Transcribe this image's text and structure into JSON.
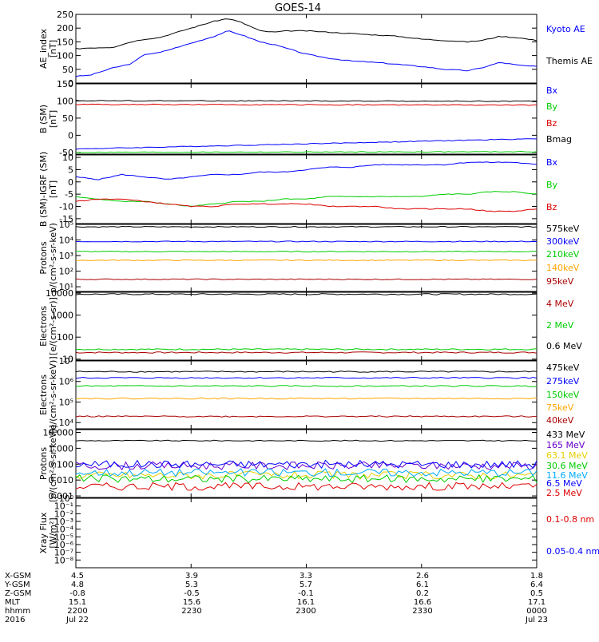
{
  "title": "GOES-14",
  "colors": {
    "black": "#000000",
    "blue": "#0000ff",
    "green": "#00cc00",
    "red": "#dd0000",
    "darkred": "#aa0000",
    "orange": "#ffa500",
    "yellow": "#e6d000",
    "cyan": "#00aaff",
    "purple": "#6600cc",
    "gray": "#444444"
  },
  "chart_data": [
    {
      "type": "line",
      "id": "ae",
      "ylabel": [
        "AE_index",
        "[nT]"
      ],
      "ylim": [
        0,
        250
      ],
      "scale": "linear",
      "yticks": [
        0,
        50,
        100,
        150,
        200,
        250
      ],
      "ytick_labels": [
        "0",
        "50",
        "100",
        "150",
        "200",
        "250"
      ],
      "series": [
        {
          "name": "Kyoto AE",
          "color": "#0000ff",
          "x": [
            0,
            0.03,
            0.08,
            0.12,
            0.15,
            0.18,
            0.22,
            0.26,
            0.3,
            0.33,
            0.36,
            0.4,
            0.43,
            0.46,
            0.5,
            0.55,
            0.6,
            0.65,
            0.7,
            0.75,
            0.8,
            0.85,
            0.88,
            0.92,
            0.96,
            1.0
          ],
          "y": [
            25,
            28,
            55,
            70,
            105,
            110,
            130,
            150,
            170,
            190,
            175,
            150,
            140,
            125,
            105,
            90,
            80,
            75,
            68,
            60,
            50,
            45,
            55,
            75,
            65,
            60
          ]
        },
        {
          "name": "Themis AE",
          "color": "#000000",
          "x": [
            0,
            0.03,
            0.08,
            0.12,
            0.15,
            0.18,
            0.22,
            0.26,
            0.3,
            0.33,
            0.36,
            0.4,
            0.43,
            0.46,
            0.5,
            0.55,
            0.6,
            0.65,
            0.7,
            0.75,
            0.8,
            0.85,
            0.88,
            0.92,
            0.96,
            1.0
          ],
          "y": [
            125,
            128,
            130,
            150,
            160,
            165,
            185,
            205,
            225,
            235,
            220,
            190,
            185,
            190,
            190,
            185,
            180,
            175,
            170,
            160,
            155,
            150,
            155,
            170,
            165,
            155
          ]
        }
      ],
      "legend": [
        "Kyoto AE",
        "Themis AE"
      ]
    },
    {
      "type": "line",
      "id": "bsm",
      "ylabel": [
        "B (SM)",
        "[nT]"
      ],
      "ylim": [
        -55,
        150
      ],
      "scale": "linear",
      "yticks": [
        -50,
        0,
        50,
        100,
        150
      ],
      "ytick_labels": [
        "-50",
        "0",
        "50",
        "100",
        "150"
      ],
      "series": [
        {
          "name": "Bx",
          "color": "#0000ff",
          "x": [
            0,
            0.5,
            1
          ],
          "y": [
            -40,
            -25,
            -10
          ]
        },
        {
          "name": "By",
          "color": "#00cc00",
          "x": [
            0,
            0.5,
            1
          ],
          "y": [
            -50,
            -49,
            -48
          ]
        },
        {
          "name": "Bz",
          "color": "#dd0000",
          "x": [
            0,
            0.5,
            1
          ],
          "y": [
            90,
            89,
            88
          ]
        },
        {
          "name": "Bmag",
          "color": "#000000",
          "x": [
            0,
            0.5,
            1
          ],
          "y": [
            101,
            100,
            99
          ]
        }
      ],
      "legend": [
        "Bx",
        "By",
        "Bz",
        "Bmag"
      ]
    },
    {
      "type": "line",
      "id": "bigrf",
      "ylabel": [
        "B (SM)-IGRF (SM)",
        "[nT]"
      ],
      "ylim": [
        -17,
        11
      ],
      "scale": "linear",
      "yticks": [
        -15,
        -10,
        -5,
        0,
        5,
        10
      ],
      "ytick_labels": [
        "-15",
        "-10",
        "-5",
        "0",
        "5",
        "10"
      ],
      "series": [
        {
          "name": "Bx",
          "color": "#0000ff",
          "x": [
            0,
            0.05,
            0.1,
            0.15,
            0.2,
            0.25,
            0.3,
            0.35,
            0.4,
            0.45,
            0.5,
            0.55,
            0.6,
            0.65,
            0.7,
            0.75,
            0.8,
            0.85,
            0.9,
            0.95,
            1.0
          ],
          "y": [
            2,
            1,
            3,
            2,
            1,
            2,
            3,
            3,
            4,
            4,
            5,
            6,
            6,
            7,
            7,
            7,
            7,
            8,
            8,
            8,
            7
          ]
        },
        {
          "name": "By",
          "color": "#00cc00",
          "x": [
            0,
            0.05,
            0.1,
            0.15,
            0.2,
            0.25,
            0.3,
            0.35,
            0.4,
            0.45,
            0.5,
            0.55,
            0.6,
            0.65,
            0.7,
            0.75,
            0.8,
            0.85,
            0.9,
            0.95,
            1.0
          ],
          "y": [
            -6,
            -7,
            -8,
            -8,
            -9,
            -10,
            -9,
            -8,
            -8,
            -7,
            -7,
            -6,
            -6,
            -6,
            -6,
            -6,
            -5,
            -5,
            -4,
            -4,
            -5
          ]
        },
        {
          "name": "Bz",
          "color": "#dd0000",
          "x": [
            0,
            0.05,
            0.1,
            0.15,
            0.2,
            0.25,
            0.3,
            0.35,
            0.4,
            0.45,
            0.5,
            0.55,
            0.6,
            0.65,
            0.7,
            0.75,
            0.8,
            0.85,
            0.9,
            0.95,
            1.0
          ],
          "y": [
            -8,
            -7,
            -7,
            -8,
            -9,
            -10,
            -10,
            -9,
            -9,
            -9,
            -9,
            -10,
            -10,
            -10,
            -11,
            -11,
            -11,
            -11,
            -12,
            -12,
            -11
          ]
        }
      ],
      "legend": [
        "Bx",
        "By",
        "Bz"
      ]
    },
    {
      "type": "line",
      "id": "protons1",
      "ylabel": [
        "Protons",
        "p/(cm²-s-sr-keV)"
      ],
      "ylim": [
        5,
        100000
      ],
      "scale": "log",
      "yticks": [
        10,
        100,
        1000,
        10000,
        100000
      ],
      "ytick_labels": [
        "10¹",
        "10²",
        "10³",
        "10⁴",
        "10⁵"
      ],
      "series": [
        {
          "name": "575keV",
          "color": "#000000",
          "x": [
            0,
            1
          ],
          "y": [
            70000,
            70000
          ]
        },
        {
          "name": "300keV",
          "color": "#0000ff",
          "x": [
            0,
            1
          ],
          "y": [
            8000,
            8000
          ]
        },
        {
          "name": "210keV",
          "color": "#00cc00",
          "x": [
            0,
            1
          ],
          "y": [
            1800,
            1800
          ]
        },
        {
          "name": "140keV",
          "color": "#ffa500",
          "x": [
            0,
            1
          ],
          "y": [
            500,
            500
          ]
        },
        {
          "name": "95keV",
          "color": "#aa0000",
          "x": [
            0,
            1
          ],
          "y": [
            30,
            30
          ]
        }
      ],
      "legend": [
        "575keV",
        "300keV",
        "210keV",
        "140keV",
        "95keV"
      ]
    },
    {
      "type": "line",
      "id": "electrons1",
      "ylabel": [
        "Electrons",
        "[e/(cm²-s-sr)]"
      ],
      "ylim": [
        9,
        11000
      ],
      "scale": "log",
      "yticks": [
        10,
        100,
        1000,
        10000
      ],
      "ytick_labels": [
        "10",
        "100",
        "1000",
        "10000"
      ],
      "series": [
        {
          "name": "4 MeV",
          "color": "#aa0000",
          "x": [
            0,
            1
          ],
          "y": [
            20,
            20
          ]
        },
        {
          "name": "2 MeV",
          "color": "#00cc00",
          "x": [
            0,
            1
          ],
          "y": [
            28,
            28
          ]
        },
        {
          "name": "0.6 MeV",
          "color": "#000000",
          "x": [
            0,
            1
          ],
          "y": [
            9000,
            9000
          ]
        }
      ],
      "legend": [
        "4 MeV",
        "2 MeV",
        "0.6 MeV"
      ]
    },
    {
      "type": "line",
      "id": "electrons2",
      "ylabel": [
        "Electrons",
        "[e/(cm²-s-sr-keV)]"
      ],
      "ylim": [
        5000,
        10000000
      ],
      "scale": "log",
      "yticks": [
        10000,
        100000,
        1000000,
        10000000
      ],
      "ytick_labels": [
        "10⁴",
        "10⁵",
        "10⁶",
        "10⁷"
      ],
      "series": [
        {
          "name": "475keV",
          "color": "#000000",
          "x": [
            0,
            1
          ],
          "y": [
            3000000,
            3000000
          ]
        },
        {
          "name": "275keV",
          "color": "#0000ff",
          "x": [
            0,
            1
          ],
          "y": [
            1500000,
            1500000
          ]
        },
        {
          "name": "150keV",
          "color": "#00cc00",
          "x": [
            0,
            1
          ],
          "y": [
            600000,
            600000
          ]
        },
        {
          "name": "75keV",
          "color": "#ffa500",
          "x": [
            0,
            1
          ],
          "y": [
            150000,
            150000
          ]
        },
        {
          "name": "40keV",
          "color": "#aa0000",
          "x": [
            0,
            1
          ],
          "y": [
            20000,
            20000
          ]
        }
      ],
      "legend": [
        "475keV",
        "275keV",
        "150keV",
        "75keV",
        "40keV"
      ]
    },
    {
      "type": "line",
      "id": "protons2",
      "ylabel": [
        "Protons",
        "[p/(cm²-s-sr-keV)]"
      ],
      "ylim": [
        0.0008,
        15
      ],
      "scale": "log",
      "yticks": [
        0.001,
        0.01,
        0.1,
        1,
        10
      ],
      "ytick_labels": [
        "0.001",
        "0.010",
        "0.100",
        "1.000",
        "10.000"
      ],
      "series": [
        {
          "name": "433 MeV",
          "color": "#000000",
          "x": [
            0,
            1
          ],
          "y": [
            3,
            3
          ]
        },
        {
          "name": "165 MeV",
          "color": "#6600cc",
          "x": [
            0,
            1
          ],
          "y": [
            0.08,
            0.08
          ]
        },
        {
          "name": "63.1 MeV",
          "color": "#e6d000",
          "x": [
            0,
            1
          ],
          "y": [
            0.02,
            0.02
          ]
        },
        {
          "name": "30.6 MeV",
          "color": "#00cc00",
          "x": [
            0,
            1
          ],
          "y": [
            0.012,
            0.012
          ]
        },
        {
          "name": "11.6 MeV",
          "color": "#00aaff",
          "x": [
            0,
            1
          ],
          "y": [
            0.03,
            0.03
          ]
        },
        {
          "name": "6.5 MeV",
          "color": "#0000ff",
          "x": [
            0,
            1
          ],
          "y": [
            0.1,
            0.1
          ]
        },
        {
          "name": "2.5 MeV",
          "color": "#dd0000",
          "x": [
            0,
            1
          ],
          "y": [
            0.004,
            0.004
          ]
        }
      ],
      "legend": [
        "433 MeV",
        "165 MeV",
        "63.1 MeV",
        "30.6 MeV",
        "11.6 MeV",
        "6.5 MeV",
        "2.5 MeV"
      ]
    },
    {
      "type": "line",
      "id": "xray",
      "ylabel": [
        "Xray Flux",
        "[W/m²]"
      ],
      "ylim": [
        1e-09,
        1
      ],
      "scale": "log",
      "yticks": [
        1,
        0.1,
        0.01,
        0.001,
        0.0001,
        1e-05,
        1e-06,
        1e-07,
        1e-08
      ],
      "ytick_labels": [
        "10⁰",
        "10⁻¹",
        "10⁻²",
        "10⁻³",
        "10⁻⁴",
        "10⁻⁵",
        "10⁻⁶",
        "10⁻⁷",
        "10⁻⁸"
      ],
      "series": [],
      "legend": [
        "0.1-0.8 nm",
        "0.05-0.4 nm"
      ],
      "legend_colors": [
        "#dd0000",
        "#0000ff"
      ]
    }
  ],
  "x_axis": {
    "row_labels": [
      "X-GSM",
      "Y-GSM",
      "Z-GSM",
      "MLT",
      "hhmm",
      "2016"
    ],
    "columns": [
      [
        "4.5",
        "4.8",
        "-0.8",
        "15.1",
        "2200",
        "Jul 22"
      ],
      [
        "3.9",
        "5.3",
        "-0.5",
        "15.6",
        "2230",
        ""
      ],
      [
        "3.3",
        "5.7",
        "-0.1",
        "16.1",
        "2300",
        ""
      ],
      [
        "2.6",
        "6.1",
        "0.2",
        "16.6",
        "2330",
        ""
      ],
      [
        "1.8",
        "6.4",
        "0.5",
        "17.1",
        "0000",
        "Jul 23"
      ]
    ]
  }
}
